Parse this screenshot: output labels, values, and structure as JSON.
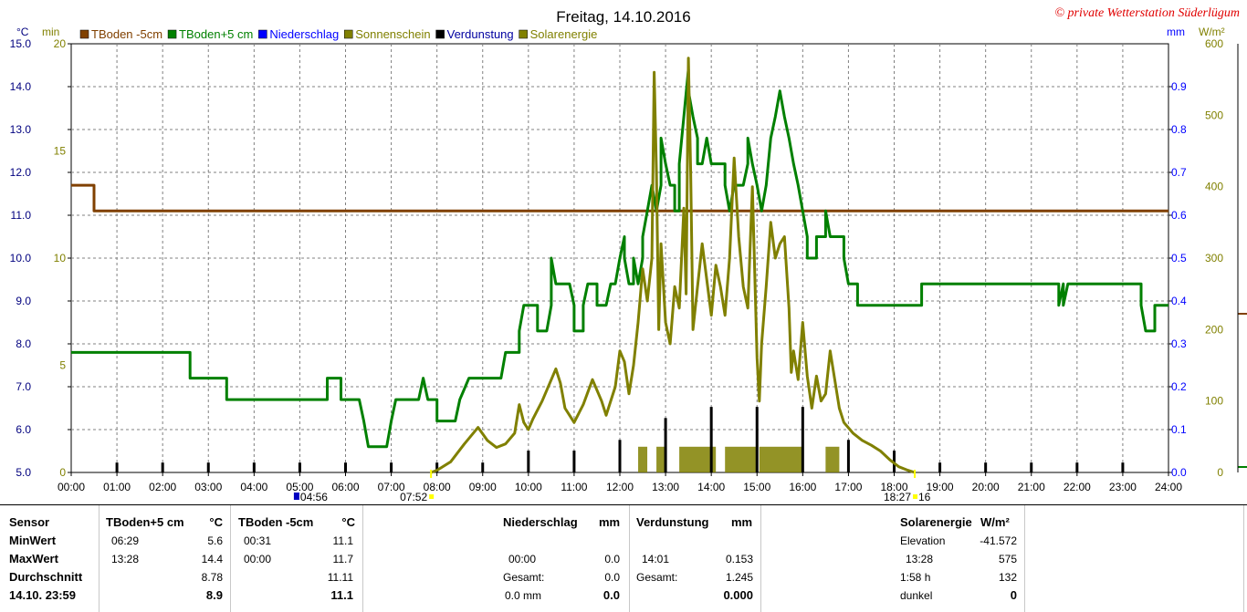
{
  "chart_data": {
    "type": "line",
    "title": "Freitag, 14.10.2016",
    "copyright": "© private Wetterstation Süderlügum",
    "x_ticks": [
      "00:00",
      "01:00",
      "02:00",
      "03:00",
      "04:00",
      "05:00",
      "06:00",
      "07:00",
      "08:00",
      "09:00",
      "10:00",
      "11:00",
      "12:00",
      "13:00",
      "14:00",
      "15:00",
      "16:00",
      "17:00",
      "18:00",
      "19:00",
      "20:00",
      "21:00",
      "22:00",
      "23:00",
      "24:00"
    ],
    "xlim": [
      0,
      24
    ],
    "axes": {
      "temp": {
        "unit": "°C",
        "range": [
          5.0,
          15.0
        ],
        "ticks": [
          "5.0",
          "6.0",
          "7.0",
          "8.0",
          "9.0",
          "10.0",
          "11.0",
          "12.0",
          "13.0",
          "14.0",
          "15.0"
        ],
        "color": "#00007f"
      },
      "minutes": {
        "unit": "min",
        "range": [
          0,
          20
        ],
        "ticks": [
          "0",
          "5",
          "10",
          "15",
          "20"
        ],
        "color": "#808000"
      },
      "mm": {
        "unit": "mm",
        "range": [
          0,
          1
        ],
        "ticks": [
          "0.0",
          "0.1",
          "0.2",
          "0.3",
          "0.4",
          "0.5",
          "0.6",
          "0.7",
          "0.8",
          "0.9"
        ],
        "color": "#0000ff"
      },
      "solar": {
        "unit": "W/m²",
        "range": [
          0,
          600
        ],
        "ticks": [
          "0",
          "100",
          "200",
          "300",
          "400",
          "500",
          "600"
        ],
        "color": "#808000"
      }
    },
    "legend": [
      {
        "name": "TBoden -5cm",
        "color": "#804000"
      },
      {
        "name": "TBoden+5 cm",
        "color": "#008000"
      },
      {
        "name": "Niederschlag",
        "color": "#0000ff"
      },
      {
        "name": "Sonnenschein",
        "color": "#808000"
      },
      {
        "name": "Verdunstung",
        "color": "#000000"
      },
      {
        "name": "Solarenergie",
        "color": "#808000"
      }
    ],
    "series": [
      {
        "name": "TBoden -5cm",
        "axis": "temp",
        "color": "#804000",
        "points": [
          [
            0,
            11.7
          ],
          [
            0.5,
            11.7
          ],
          [
            0.5,
            11.1
          ],
          [
            24,
            11.1
          ]
        ]
      },
      {
        "name": "TBoden+5 cm",
        "axis": "temp",
        "color": "#008000",
        "points": [
          [
            0,
            7.8
          ],
          [
            2.6,
            7.8
          ],
          [
            2.6,
            7.2
          ],
          [
            3.4,
            7.2
          ],
          [
            3.4,
            6.7
          ],
          [
            5.6,
            6.7
          ],
          [
            5.6,
            7.2
          ],
          [
            5.9,
            7.2
          ],
          [
            5.9,
            6.7
          ],
          [
            6.3,
            6.7
          ],
          [
            6.4,
            6.2
          ],
          [
            6.5,
            5.6
          ],
          [
            6.9,
            5.6
          ],
          [
            7.0,
            6.2
          ],
          [
            7.1,
            6.7
          ],
          [
            7.6,
            6.7
          ],
          [
            7.7,
            7.2
          ],
          [
            7.8,
            6.7
          ],
          [
            8.0,
            6.7
          ],
          [
            8.0,
            6.2
          ],
          [
            8.4,
            6.2
          ],
          [
            8.5,
            6.7
          ],
          [
            8.7,
            7.2
          ],
          [
            9.4,
            7.2
          ],
          [
            9.5,
            7.8
          ],
          [
            9.8,
            7.8
          ],
          [
            9.8,
            8.3
          ],
          [
            9.9,
            8.9
          ],
          [
            10.2,
            8.9
          ],
          [
            10.2,
            8.3
          ],
          [
            10.4,
            8.3
          ],
          [
            10.5,
            8.9
          ],
          [
            10.5,
            9.4
          ],
          [
            10.5,
            10.0
          ],
          [
            10.6,
            9.4
          ],
          [
            10.9,
            9.4
          ],
          [
            11.0,
            8.9
          ],
          [
            11.0,
            8.3
          ],
          [
            11.2,
            8.3
          ],
          [
            11.2,
            8.9
          ],
          [
            11.3,
            9.4
          ],
          [
            11.5,
            9.4
          ],
          [
            11.5,
            8.9
          ],
          [
            11.7,
            8.9
          ],
          [
            11.8,
            9.4
          ],
          [
            11.9,
            9.4
          ],
          [
            12.0,
            10.0
          ],
          [
            12.1,
            10.5
          ],
          [
            12.1,
            10.0
          ],
          [
            12.2,
            9.4
          ],
          [
            12.3,
            9.4
          ],
          [
            12.3,
            10.0
          ],
          [
            12.4,
            9.4
          ],
          [
            12.5,
            10.0
          ],
          [
            12.5,
            10.5
          ],
          [
            12.6,
            11.1
          ],
          [
            12.7,
            11.7
          ],
          [
            12.8,
            11.1
          ],
          [
            12.9,
            11.7
          ],
          [
            12.9,
            12.8
          ],
          [
            13.0,
            12.2
          ],
          [
            13.1,
            11.7
          ],
          [
            13.2,
            11.7
          ],
          [
            13.2,
            11.1
          ],
          [
            13.3,
            11.1
          ],
          [
            13.3,
            12.2
          ],
          [
            13.4,
            13.3
          ],
          [
            13.5,
            14.4
          ],
          [
            13.5,
            13.9
          ],
          [
            13.6,
            13.3
          ],
          [
            13.7,
            12.8
          ],
          [
            13.7,
            12.2
          ],
          [
            13.8,
            12.2
          ],
          [
            13.9,
            12.8
          ],
          [
            14.0,
            12.2
          ],
          [
            14.3,
            12.2
          ],
          [
            14.3,
            11.7
          ],
          [
            14.4,
            11.1
          ],
          [
            14.5,
            11.7
          ],
          [
            14.7,
            11.7
          ],
          [
            14.8,
            12.2
          ],
          [
            14.8,
            12.8
          ],
          [
            14.9,
            12.2
          ],
          [
            15.0,
            11.7
          ],
          [
            15.1,
            11.1
          ],
          [
            15.2,
            11.7
          ],
          [
            15.3,
            12.8
          ],
          [
            15.4,
            13.3
          ],
          [
            15.5,
            13.9
          ],
          [
            15.6,
            13.3
          ],
          [
            15.7,
            12.8
          ],
          [
            15.8,
            12.2
          ],
          [
            15.9,
            11.7
          ],
          [
            16.0,
            11.1
          ],
          [
            16.1,
            10.5
          ],
          [
            16.1,
            10.0
          ],
          [
            16.3,
            10.0
          ],
          [
            16.3,
            10.5
          ],
          [
            16.5,
            10.5
          ],
          [
            16.5,
            11.1
          ],
          [
            16.6,
            10.5
          ],
          [
            16.9,
            10.5
          ],
          [
            16.9,
            10.0
          ],
          [
            17.0,
            9.4
          ],
          [
            17.2,
            9.4
          ],
          [
            17.2,
            8.9
          ],
          [
            18.6,
            8.9
          ],
          [
            18.6,
            9.4
          ],
          [
            20.6,
            9.4
          ],
          [
            21.6,
            9.4
          ],
          [
            21.6,
            8.9
          ],
          [
            21.7,
            9.4
          ],
          [
            21.7,
            8.9
          ],
          [
            21.8,
            9.4
          ],
          [
            23.4,
            9.4
          ],
          [
            23.4,
            8.9
          ],
          [
            23.5,
            8.3
          ],
          [
            23.7,
            8.3
          ],
          [
            23.7,
            8.9
          ],
          [
            24,
            8.9
          ]
        ]
      },
      {
        "name": "Solarenergie",
        "axis": "solar",
        "color": "#808000",
        "points": [
          [
            7.87,
            0
          ],
          [
            8.0,
            3
          ],
          [
            8.3,
            15
          ],
          [
            8.6,
            40
          ],
          [
            8.9,
            63
          ],
          [
            9.1,
            45
          ],
          [
            9.3,
            35
          ],
          [
            9.5,
            40
          ],
          [
            9.7,
            55
          ],
          [
            9.8,
            95
          ],
          [
            9.9,
            70
          ],
          [
            10.0,
            60
          ],
          [
            10.1,
            75
          ],
          [
            10.3,
            100
          ],
          [
            10.5,
            130
          ],
          [
            10.6,
            145
          ],
          [
            10.7,
            125
          ],
          [
            10.8,
            90
          ],
          [
            10.9,
            80
          ],
          [
            11.0,
            70
          ],
          [
            11.2,
            95
          ],
          [
            11.4,
            130
          ],
          [
            11.6,
            100
          ],
          [
            11.7,
            80
          ],
          [
            11.9,
            120
          ],
          [
            12.0,
            170
          ],
          [
            12.1,
            155
          ],
          [
            12.2,
            110
          ],
          [
            12.3,
            150
          ],
          [
            12.4,
            210
          ],
          [
            12.5,
            285
          ],
          [
            12.6,
            240
          ],
          [
            12.7,
            300
          ],
          [
            12.75,
            560
          ],
          [
            12.8,
            420
          ],
          [
            12.85,
            200
          ],
          [
            12.9,
            320
          ],
          [
            13.0,
            210
          ],
          [
            13.1,
            180
          ],
          [
            13.2,
            260
          ],
          [
            13.3,
            230
          ],
          [
            13.4,
            370
          ],
          [
            13.45,
            250
          ],
          [
            13.5,
            580
          ],
          [
            13.55,
            420
          ],
          [
            13.6,
            200
          ],
          [
            13.7,
            260
          ],
          [
            13.8,
            320
          ],
          [
            13.9,
            270
          ],
          [
            14.0,
            220
          ],
          [
            14.1,
            290
          ],
          [
            14.2,
            260
          ],
          [
            14.3,
            220
          ],
          [
            14.4,
            300
          ],
          [
            14.5,
            440
          ],
          [
            14.6,
            330
          ],
          [
            14.7,
            260
          ],
          [
            14.8,
            230
          ],
          [
            14.9,
            400
          ],
          [
            15.0,
            160
          ],
          [
            15.05,
            100
          ],
          [
            15.1,
            180
          ],
          [
            15.2,
            260
          ],
          [
            15.3,
            350
          ],
          [
            15.4,
            300
          ],
          [
            15.5,
            320
          ],
          [
            15.6,
            330
          ],
          [
            15.7,
            230
          ],
          [
            15.75,
            140
          ],
          [
            15.8,
            170
          ],
          [
            15.9,
            130
          ],
          [
            16.0,
            210
          ],
          [
            16.1,
            135
          ],
          [
            16.2,
            90
          ],
          [
            16.3,
            135
          ],
          [
            16.4,
            100
          ],
          [
            16.5,
            110
          ],
          [
            16.6,
            170
          ],
          [
            16.7,
            130
          ],
          [
            16.8,
            90
          ],
          [
            16.9,
            70
          ],
          [
            17.1,
            55
          ],
          [
            17.3,
            45
          ],
          [
            17.5,
            38
          ],
          [
            17.7,
            30
          ],
          [
            17.9,
            18
          ],
          [
            18.1,
            8
          ],
          [
            18.3,
            3
          ],
          [
            18.45,
            0
          ]
        ]
      }
    ],
    "sunshine_blocks": [
      [
        12.4,
        12.6
      ],
      [
        12.8,
        13.0
      ],
      [
        13.3,
        14.1
      ],
      [
        14.3,
        15.0
      ],
      [
        15.05,
        16.0
      ],
      [
        16.5,
        16.8
      ]
    ],
    "sunshine_level_min": 1.2,
    "evaporation": [
      {
        "t": 1,
        "v": 0.023
      },
      {
        "t": 2,
        "v": 0.023
      },
      {
        "t": 3,
        "v": 0.023
      },
      {
        "t": 4,
        "v": 0.023
      },
      {
        "t": 5,
        "v": 0.023
      },
      {
        "t": 6,
        "v": 0.023
      },
      {
        "t": 7,
        "v": 0.023
      },
      {
        "t": 8,
        "v": 0.023
      },
      {
        "t": 9,
        "v": 0.023
      },
      {
        "t": 10,
        "v": 0.051
      },
      {
        "t": 11,
        "v": 0.051
      },
      {
        "t": 12,
        "v": 0.076
      },
      {
        "t": 13,
        "v": 0.127
      },
      {
        "t": 14,
        "v": 0.153
      },
      {
        "t": 15,
        "v": 0.153
      },
      {
        "t": 16,
        "v": 0.153
      },
      {
        "t": 17,
        "v": 0.076
      },
      {
        "t": 18,
        "v": 0.051
      },
      {
        "t": 19,
        "v": 0.023
      },
      {
        "t": 20,
        "v": 0.023
      },
      {
        "t": 21,
        "v": 0.023
      },
      {
        "t": 22,
        "v": 0.023
      },
      {
        "t": 23,
        "v": 0.023
      }
    ],
    "sun_markers": [
      {
        "t": 7.87,
        "label": "07:52"
      },
      {
        "t": 18.45,
        "label": "18:27"
      }
    ],
    "moon_marker": {
      "t": 4.93,
      "label": "04:56"
    },
    "extra_label": "16"
  },
  "stats": {
    "headers": {
      "sensor": "Sensor",
      "tboden_plus": "TBoden+5 cm",
      "tboden_plus_unit": "°C",
      "tboden_minus": "TBoden -5cm",
      "tboden_minus_unit": "°C",
      "niederschlag": "Niederschlag",
      "niederschlag_unit": "mm",
      "verdunstung": "Verdunstung",
      "verdunstung_unit": "mm",
      "solar": "Solarenergie",
      "solar_unit": "W/m²"
    },
    "row_labels": [
      "MinWert",
      "MaxWert",
      "Durchschnitt",
      "14.10. 23:59"
    ],
    "tboden_plus": {
      "min_time": "06:29",
      "min": "5.6",
      "max_time": "13:28",
      "max": "14.4",
      "avg": "8.78",
      "current": "8.9"
    },
    "tboden_minus": {
      "min_time": "00:31",
      "min": "11.1",
      "max_time": "00:00",
      "max": "11.7",
      "avg": "11.11",
      "current": "11.1"
    },
    "niederschlag": {
      "max_time": "00:00",
      "max": "0.0",
      "total_label": "Gesamt:",
      "total": "0.0",
      "current_label": "0.0 mm",
      "current": "0.0"
    },
    "verdunstung": {
      "max_time": "14:01",
      "max": "0.153",
      "total_label": "Gesamt:",
      "total": "1.245",
      "current": "0.000"
    },
    "solar": {
      "elev_label": "Elevation",
      "elev": "-41.572",
      "max_time": "13:28",
      "max": "575",
      "sun_label": "1:58 h",
      "sun_value": "132",
      "state_label": "dunkel",
      "state_value": "0"
    }
  }
}
